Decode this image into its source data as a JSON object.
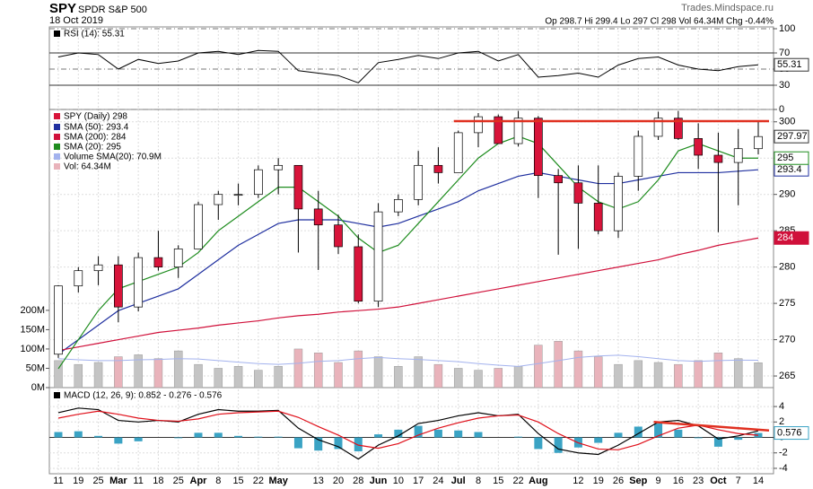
{
  "chart_data": {
    "type": "candlestick",
    "title": "SPY",
    "subtitle": "SPDR S&P 500",
    "date": "18 Oct 2019",
    "source": "Trades.Mindspace.ru",
    "quote": "Op 298.7 Hi 299.4 Lo 297 Cl 298 Vol 64.34M Chg -0.44%",
    "categories": [
      "11",
      "19",
      "25",
      "Mar",
      "11",
      "18",
      "25",
      "Apr",
      "8",
      "15",
      "22",
      "May",
      null,
      "13",
      "20",
      "28",
      "Jun",
      "10",
      "17",
      "24",
      "Jul",
      "8",
      "15",
      "22",
      "Aug",
      null,
      "12",
      "19",
      "26",
      "Sep",
      "9",
      "16",
      "23",
      "Oct",
      "7",
      "14"
    ],
    "price": {
      "name": "SPY (Daily) 298",
      "up_color": "#ffffff",
      "down_color": "#d8143a",
      "open": [
        268,
        277.4,
        279.5,
        280.3,
        274.5,
        281.3,
        280,
        282.5,
        288.6,
        290,
        290,
        293.4,
        294,
        288,
        285.8,
        282.8,
        275.3,
        287.6,
        289.3,
        294,
        293,
        298.5,
        300.7,
        297,
        300.5,
        292.6,
        291.6,
        288.8,
        285,
        292.5,
        298,
        300.5,
        297.7,
        295.4,
        294.4,
        296.3
      ],
      "high": [
        277.5,
        280,
        281.5,
        281.5,
        282,
        285,
        283,
        289,
        290.5,
        291.5,
        294,
        295,
        294,
        290.5,
        287.2,
        284.5,
        288.8,
        290,
        296,
        296.5,
        298.8,
        301.2,
        301,
        301.5,
        300.8,
        293.5,
        294,
        294,
        293,
        298.8,
        301.4,
        301.5,
        299.8,
        298.5,
        299,
        300.2
      ],
      "low": [
        267.5,
        276.5,
        277.5,
        272.4,
        273.9,
        279.5,
        278.5,
        282.5,
        286.5,
        288.5,
        289.5,
        290,
        282,
        279.6,
        281.8,
        275,
        274.5,
        287,
        288.5,
        291.5,
        293,
        296.5,
        297,
        296.6,
        289.5,
        281.7,
        282.5,
        284.5,
        284,
        290.5,
        297.5,
        297.5,
        293.5,
        284.8,
        288.5,
        295.5
      ],
      "close": [
        277.4,
        279.5,
        280.3,
        274.5,
        281.3,
        280,
        282.5,
        288.6,
        290,
        290,
        293.4,
        294,
        288,
        285.8,
        282.8,
        275.3,
        287.6,
        289.3,
        294,
        293,
        298.5,
        300.7,
        297,
        300.5,
        292.6,
        291.6,
        288.8,
        285,
        292.5,
        298,
        300.5,
        297.7,
        295.4,
        294.4,
        296.3,
        297.97
      ],
      "ylim": [
        263.4,
        301.7
      ],
      "yticks": [
        300,
        295,
        290,
        285,
        280,
        275,
        270,
        265
      ]
    },
    "sma": [
      {
        "name": "SMA (50): 293.4",
        "color": "#1f2f9f",
        "values": [
          268,
          270,
          272,
          274,
          275,
          276,
          277,
          279,
          281,
          283,
          284.5,
          286,
          286.5,
          286.5,
          286.5,
          286,
          285.5,
          286,
          287,
          288,
          289,
          290.5,
          291.5,
          292.5,
          293,
          292.5,
          292,
          291.5,
          291.5,
          292,
          292.5,
          293,
          293,
          293,
          293.2,
          293.4
        ]
      },
      {
        "name": "SMA (200): 284",
        "color": "#d0103a",
        "values": [
          268.5,
          269,
          269.5,
          270,
          270.5,
          271,
          271.3,
          271.6,
          272,
          272.3,
          272.6,
          273,
          273.3,
          273.5,
          273.8,
          274,
          274.2,
          274.5,
          275,
          275.5,
          276,
          276.5,
          277,
          277.5,
          278,
          278.5,
          279,
          279.5,
          280,
          280.5,
          281,
          281.7,
          282.3,
          283,
          283.5,
          284
        ]
      },
      {
        "name": "SMA (20): 295",
        "color": "#1e8c1e",
        "values": [
          266,
          270,
          274,
          277,
          278,
          279,
          280,
          282,
          285,
          287,
          289,
          291,
          291,
          289,
          287,
          284,
          282,
          283,
          286,
          289,
          292,
          295,
          297,
          298,
          297,
          294,
          291,
          289,
          288,
          289,
          292,
          296,
          297,
          296,
          295,
          295
        ]
      }
    ],
    "volume": {
      "name": "Vol: 64.34M",
      "up_color": "#c4c4c4",
      "down_color": "#e9b3bb",
      "values": [
        70000000,
        60000000,
        65000000,
        80000000,
        85000000,
        75000000,
        95000000,
        60000000,
        50000000,
        55000000,
        45000000,
        55000000,
        100000000,
        90000000,
        65000000,
        95000000,
        80000000,
        55000000,
        80000000,
        60000000,
        50000000,
        45000000,
        50000000,
        55000000,
        110000000,
        120000000,
        95000000,
        80000000,
        60000000,
        70000000,
        65000000,
        60000000,
        70000000,
        90000000,
        75000000,
        64340000
      ],
      "ylim": [
        0,
        720000000
      ],
      "yticks": [
        {
          "value": 200000000,
          "label": "200M"
        },
        {
          "value": 150000000,
          "label": "150M"
        },
        {
          "value": 100000000,
          "label": "100M"
        },
        {
          "value": 50000000,
          "label": "50M"
        },
        {
          "value": 0,
          "label": "0M"
        }
      ],
      "sma": {
        "name": "Volume SMA(20): 70.9M",
        "color": "#a3b2ee",
        "values": [
          75000000,
          72000000,
          70000000,
          70000000,
          72000000,
          73000000,
          75000000,
          74000000,
          70000000,
          66000000,
          62000000,
          60000000,
          63000000,
          68000000,
          70000000,
          75000000,
          78000000,
          75000000,
          73000000,
          70000000,
          67000000,
          62000000,
          58000000,
          55000000,
          62000000,
          70000000,
          78000000,
          82000000,
          84000000,
          80000000,
          75000000,
          70000000,
          68000000,
          70000000,
          71000000,
          70900000
        ]
      }
    },
    "rsi": {
      "name": "RSI (14): 55.31",
      "color": "#000000",
      "values": [
        65,
        70,
        68,
        50,
        62,
        57,
        60,
        70,
        72,
        68,
        73,
        72,
        48,
        45,
        42,
        33,
        58,
        62,
        67,
        63,
        70,
        72,
        60,
        68,
        40,
        42,
        45,
        40,
        55,
        63,
        65,
        55,
        50,
        48,
        53,
        55.31
      ],
      "ylim": [
        0,
        100
      ],
      "yticks": [
        100,
        70,
        50,
        30,
        0
      ]
    },
    "macd": {
      "name": "MACD (12, 26, 9): 0.852 - 0.276 - 0.576",
      "macd": {
        "color": "#000000",
        "values": [
          3.2,
          3.8,
          3.6,
          2.2,
          2.0,
          2.2,
          2.0,
          3.0,
          3.6,
          3.4,
          3.4,
          3.5,
          1.2,
          -0.3,
          -1.2,
          -2.8,
          -1.0,
          0.2,
          1.8,
          2.2,
          2.8,
          3.2,
          2.8,
          3.0,
          0.5,
          -1.5,
          -2.0,
          -2.2,
          -1.0,
          0.5,
          2.0,
          2.2,
          1.5,
          -0.2,
          0.2,
          0.852
        ]
      },
      "signal": {
        "color": "#e0101a",
        "values": [
          2.5,
          3.0,
          3.4,
          3.0,
          2.5,
          2.2,
          2.1,
          2.4,
          3.0,
          3.2,
          3.3,
          3.4,
          2.6,
          1.4,
          0.3,
          -1.0,
          -1.4,
          -0.8,
          0.3,
          1.2,
          1.9,
          2.5,
          2.8,
          2.9,
          2.0,
          0.5,
          -0.7,
          -1.5,
          -1.6,
          -0.9,
          0.2,
          1.2,
          1.6,
          1.0,
          0.5,
          0.276
        ]
      },
      "hist": {
        "color": "#3aa3c4",
        "values": [
          0.7,
          0.8,
          0.2,
          -0.8,
          -0.5,
          0,
          -0.1,
          0.6,
          0.6,
          0.2,
          0.1,
          0.1,
          -1.4,
          -1.7,
          -1.5,
          -1.8,
          0.4,
          1.0,
          1.5,
          1.0,
          0.9,
          0.7,
          0,
          0.1,
          -1.5,
          -2.0,
          -1.3,
          -0.7,
          0.6,
          1.4,
          1.8,
          1.0,
          -0.1,
          -1.2,
          -0.3,
          0.576
        ]
      },
      "ylim": [
        -4.7,
        6.1
      ],
      "yticks": [
        4,
        2,
        0,
        -2,
        -4
      ]
    },
    "trendlines": [
      {
        "panel": "price",
        "color": "#e03020",
        "from": 20,
        "to": 35,
        "values": [
          300.1,
          300.1
        ]
      },
      {
        "panel": "macd",
        "color": "#e03020",
        "from": 30,
        "to": 35,
        "values": [
          2.0,
          0.9
        ]
      }
    ]
  }
}
